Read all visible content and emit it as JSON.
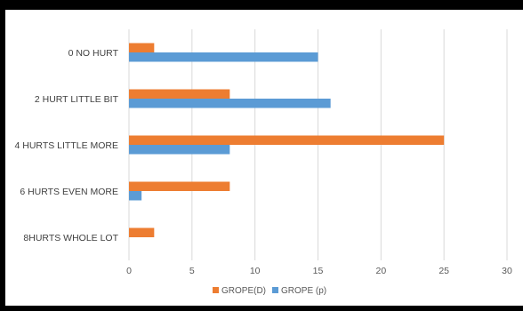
{
  "chart_data": {
    "type": "bar",
    "orientation": "horizontal",
    "categories": [
      "0 NO HURT",
      "2 HURT LITTLE BIT",
      "4 HURTS LITTLE MORE",
      "6 HURTS EVEN MORE",
      "8HURTS WHOLE LOT"
    ],
    "series": [
      {
        "name": "GROPE(D)",
        "color": "#ED7D31",
        "values": [
          2,
          8,
          25,
          8,
          2
        ]
      },
      {
        "name": "GROPE (p)",
        "color": "#5B9BD5",
        "values": [
          15,
          16,
          8,
          1,
          0
        ]
      }
    ],
    "xlim": [
      0,
      30
    ],
    "xticks": [
      0,
      5,
      10,
      15,
      20,
      25,
      30
    ],
    "grid": true,
    "legend_position": "bottom",
    "colors": {
      "gridline": "#d9d9d9",
      "frame": "#000000",
      "panel": "#ffffff"
    }
  }
}
